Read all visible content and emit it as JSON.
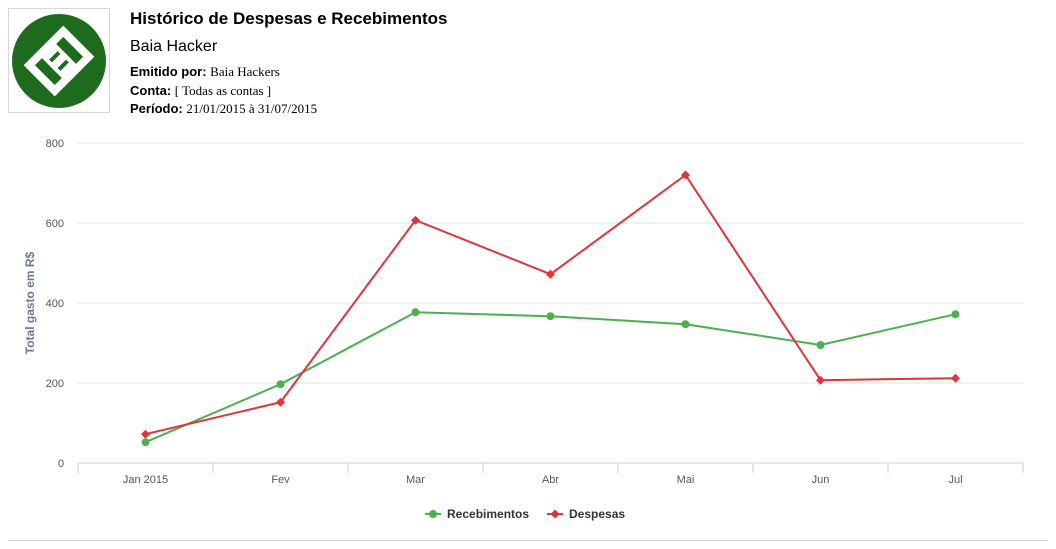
{
  "header": {
    "title": "Histórico de Despesas e Recebimentos",
    "company": "Baia Hacker",
    "issued_by_label": "Emitido por:",
    "issued_by_value": "Baia Hackers",
    "account_label": "Conta:",
    "account_value": "[ Todas as contas ]",
    "period_label": "Período:",
    "period_value": "21/01/2015 à 31/07/2015"
  },
  "logo": {
    "icon": "baia-hacker-logo-icon",
    "color": "#1e6b1e"
  },
  "chart_data": {
    "type": "line",
    "title": "",
    "xlabel": "",
    "ylabel": "Total gasto em R$",
    "categories": [
      "Jan 2015",
      "Fev",
      "Mar",
      "Abr",
      "Mai",
      "Jun",
      "Jul"
    ],
    "ylim": [
      0,
      800
    ],
    "yticks": [
      0,
      200,
      400,
      600,
      800
    ],
    "grid": true,
    "legend": "bottom-center",
    "series": [
      {
        "name": "Recebimentos",
        "color": "#4cb050",
        "marker": "circle",
        "values": [
          52,
          197,
          377,
          367,
          347,
          295,
          372
        ]
      },
      {
        "name": "Despesas",
        "color": "#e0333c",
        "marker": "diamond",
        "values": [
          72,
          152,
          607,
          472,
          720,
          207,
          212
        ]
      }
    ]
  }
}
